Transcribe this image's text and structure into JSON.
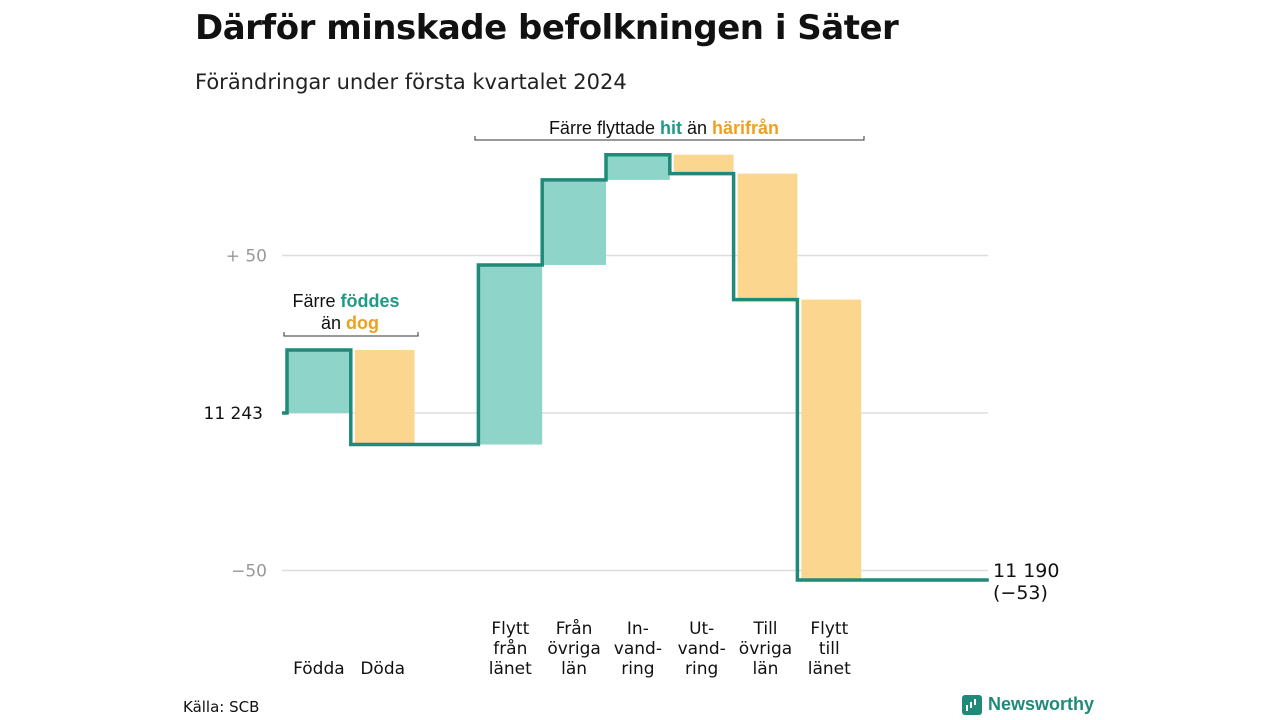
{
  "title": "Därför minskade befolkningen i Säter",
  "subtitle": "Förändringar under första kvartalet 2024",
  "source": "Källa: SCB",
  "brand": "Newsworthy",
  "colors": {
    "increase": "#8ed4c9",
    "decrease": "#fad68f",
    "line": "#1f8a78",
    "accent_teal": "#1f9a86",
    "accent_orange": "#f0a020",
    "grid": "#dddddd",
    "tick": "#999999"
  },
  "annotations": {
    "births": {
      "line1_plain": "Färre",
      "line1_bold": "föddes",
      "line2_plain": "än",
      "line2_bold": "dog"
    },
    "moves": {
      "plain1": "Färre flyttade",
      "bold1": "hit",
      "plain2": "än",
      "bold2": "härifrån"
    }
  },
  "chart_data": {
    "type": "waterfall",
    "start_label": "11  243",
    "start_value": 11243,
    "baseline": 11243,
    "y_ticks": [
      {
        "offset": 50,
        "label": "+  50"
      },
      {
        "offset": -50,
        "label": "−50"
      }
    ],
    "ylim": [
      -53,
      82
    ],
    "steps": [
      {
        "label_lines": [
          "Födda"
        ],
        "change": 20,
        "kind": "increase"
      },
      {
        "label_lines": [
          "Döda"
        ],
        "change": -30,
        "kind": "decrease"
      },
      {
        "label_lines": [],
        "change": 0,
        "kind": "gap"
      },
      {
        "label_lines": [
          "Flytt",
          "från",
          "länet"
        ],
        "change": 57,
        "kind": "increase"
      },
      {
        "label_lines": [
          "Från",
          "övriga",
          "län"
        ],
        "change": 27,
        "kind": "increase"
      },
      {
        "label_lines": [
          "In-",
          "vand-",
          "ring"
        ],
        "change": 8,
        "kind": "increase"
      },
      {
        "label_lines": [
          "Ut-",
          "vand-",
          "ring"
        ],
        "change": -6,
        "kind": "decrease"
      },
      {
        "label_lines": [
          "Till",
          "övriga",
          "län"
        ],
        "change": -40,
        "kind": "decrease"
      },
      {
        "label_lines": [
          "Flytt",
          "till",
          "länet"
        ],
        "change": -89,
        "kind": "decrease"
      },
      {
        "label_lines": [],
        "change": 0,
        "kind": "gap"
      },
      {
        "label_lines": [],
        "change": 0,
        "kind": "gap"
      }
    ],
    "end_value_label": "11 190",
    "end_change_label": "(−53)"
  }
}
